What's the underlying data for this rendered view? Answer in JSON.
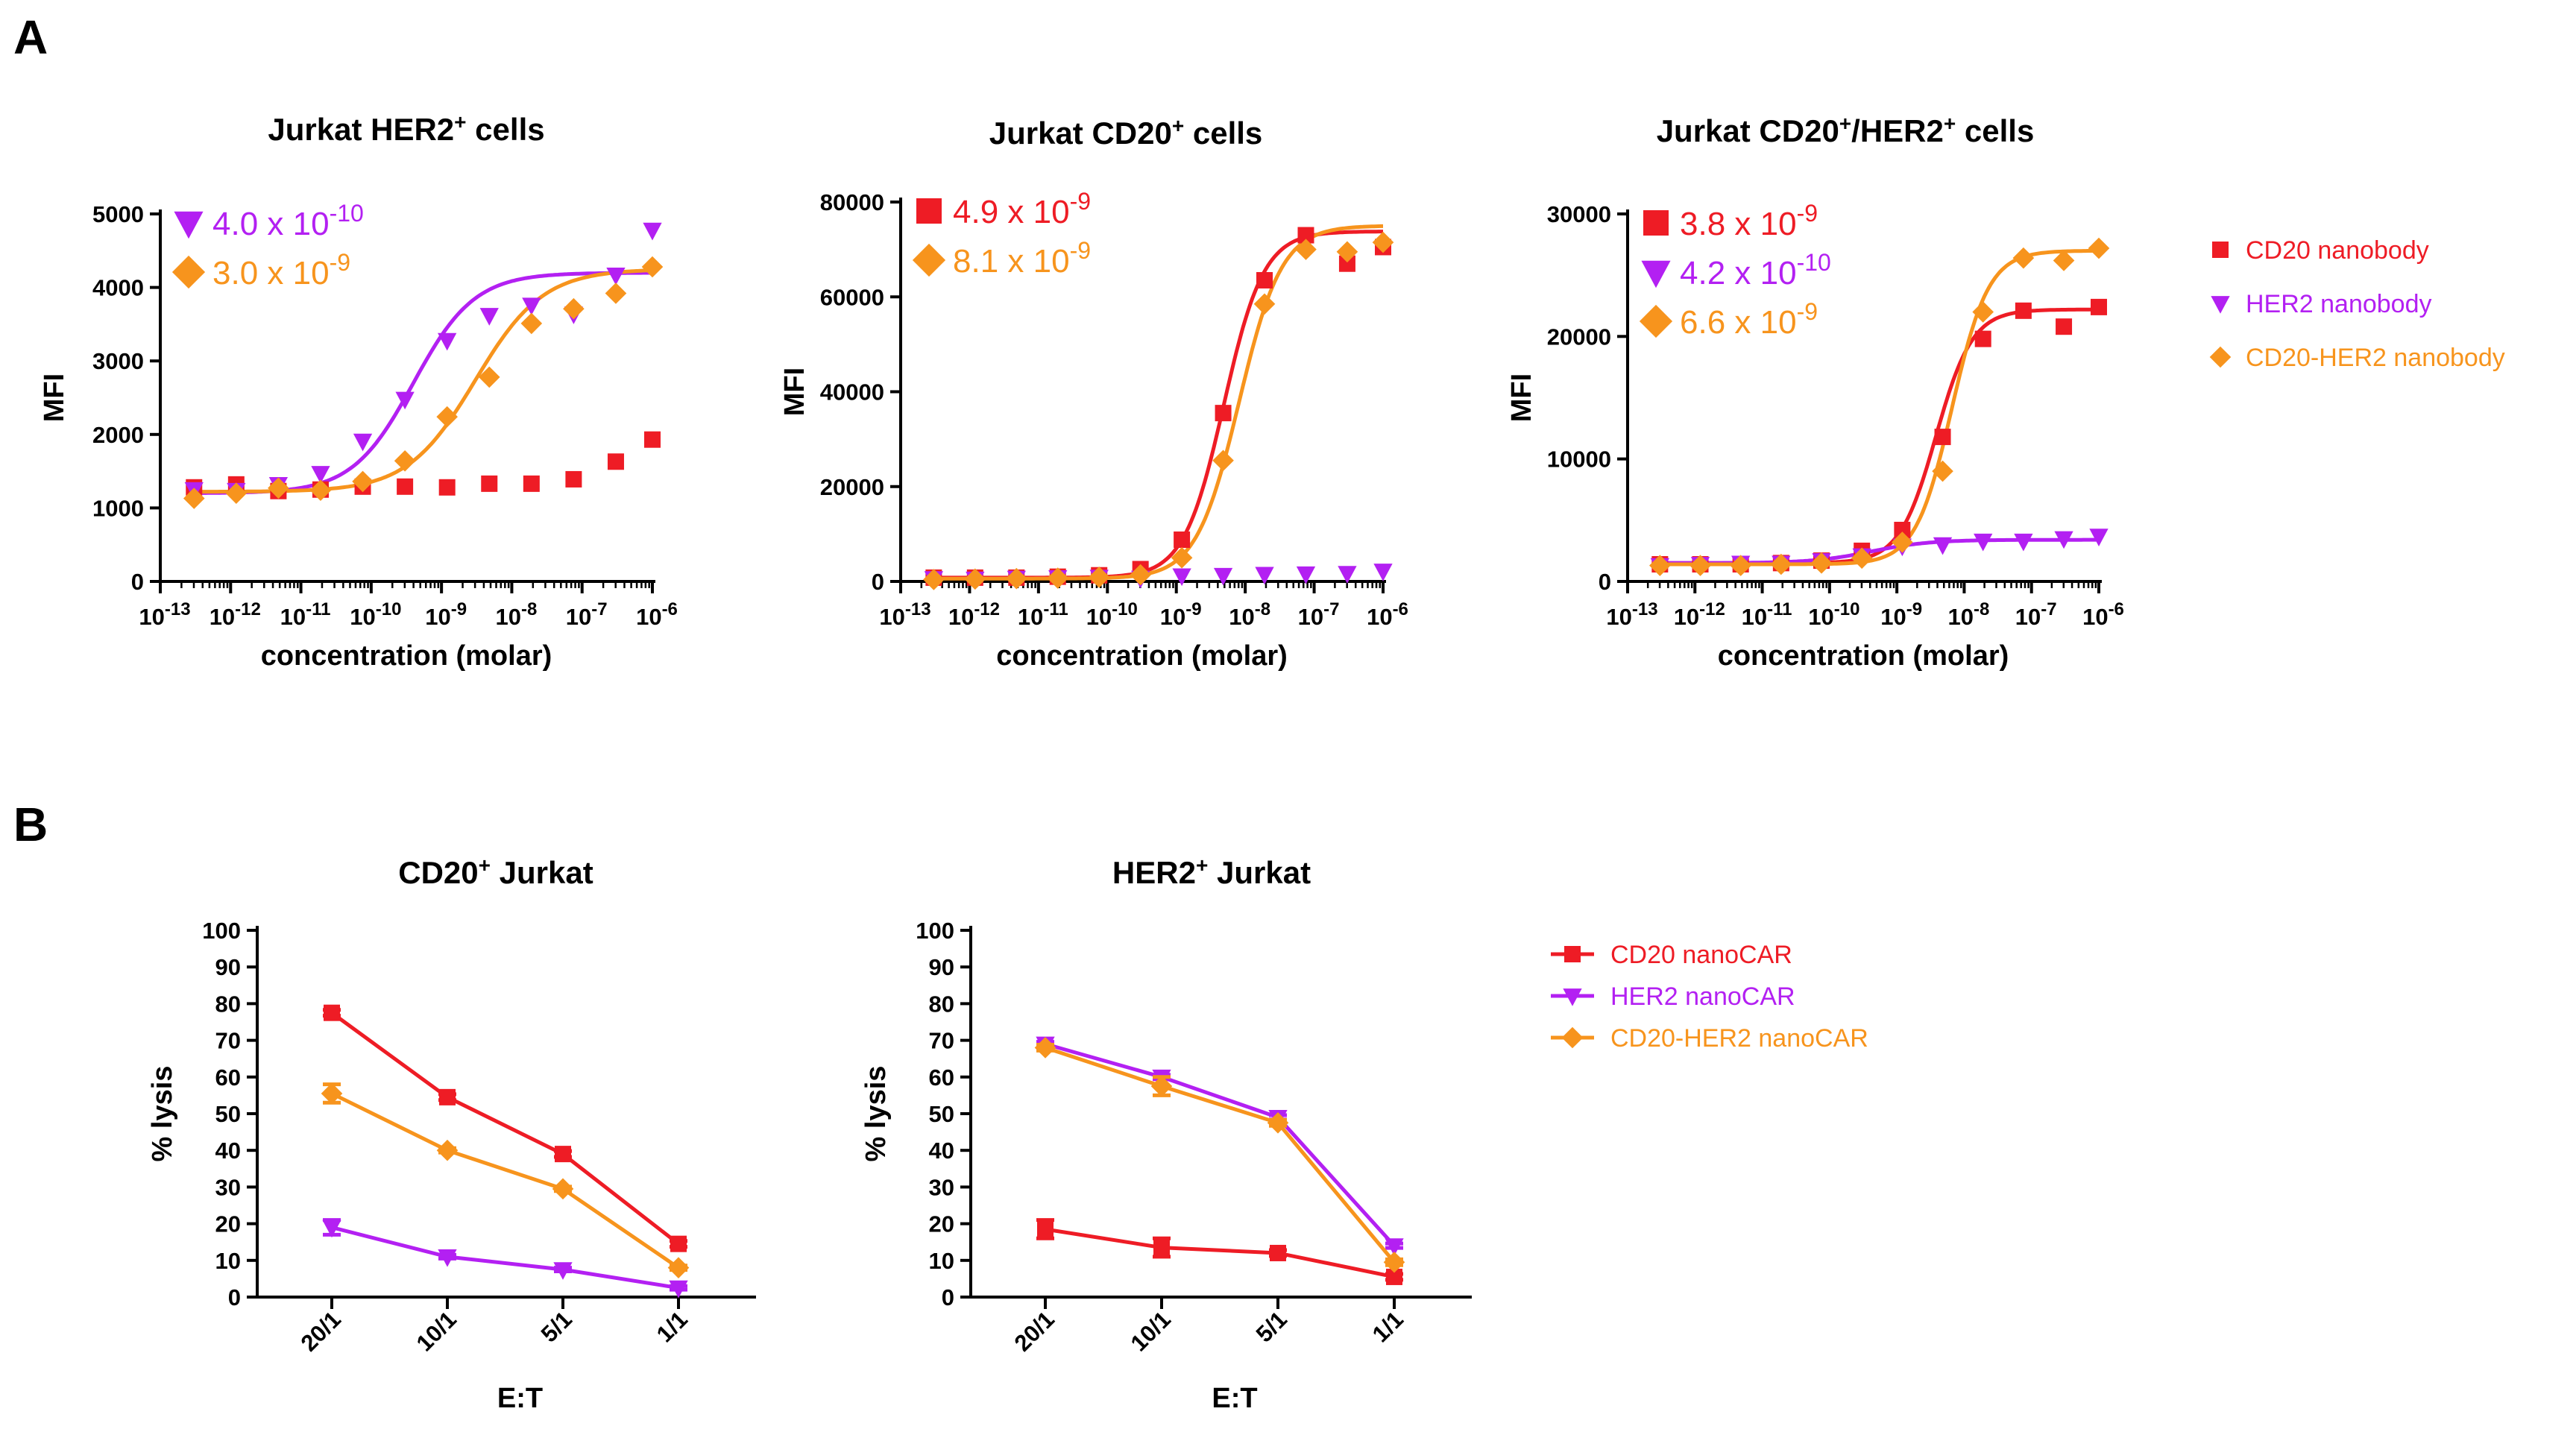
{
  "panel_labels": [
    "A",
    "B"
  ],
  "colors": {
    "cd20": "#ee1c25",
    "her2": "#b320f2",
    "cd20her2": "#f7941d",
    "axis": "#000000"
  },
  "legend_a": [
    {
      "label": "CD20 nanobody",
      "marker": "square",
      "color": "#ee1c25"
    },
    {
      "label": "HER2 nanobody",
      "marker": "triangle-down",
      "color": "#b320f2"
    },
    {
      "label": "CD20-HER2 nanobody",
      "marker": "diamond",
      "color": "#f7941d"
    }
  ],
  "legend_b": [
    {
      "label": "CD20 nanoCAR",
      "marker": "square",
      "color": "#ee1c25"
    },
    {
      "label": "HER2 nanoCAR",
      "marker": "triangle-down",
      "color": "#b320f2"
    },
    {
      "label": "CD20-HER2 nanoCAR",
      "marker": "diamond",
      "color": "#f7941d"
    }
  ],
  "chart_data": [
    {
      "id": "a1",
      "type": "scatter",
      "title": "Jurkat HER2",
      "title_sup": "+",
      "title_rest": " cells",
      "xlabel": "concentration (molar)",
      "ylabel": "MFI",
      "xscale": "log",
      "xlim": [
        -13,
        -6
      ],
      "ylim": [
        0,
        5000
      ],
      "xticks": [
        -13,
        -12,
        -11,
        -10,
        -9,
        -8,
        -7,
        -6
      ],
      "yticks": [
        0,
        1000,
        2000,
        3000,
        4000,
        5000
      ],
      "annotations": [
        {
          "marker": "triangle-down",
          "color": "#b320f2",
          "mant": "4.0 x 10",
          "exp": "-10"
        },
        {
          "marker": "diamond",
          "color": "#f7941d",
          "mant": "3.0 x 10",
          "exp": "-9"
        }
      ],
      "series": [
        {
          "name": "CD20 nanobody",
          "color": "#ee1c25",
          "marker": "square",
          "x": [
            -12.52,
            -11.92,
            -11.32,
            -10.72,
            -10.12,
            -9.52,
            -8.92,
            -8.32,
            -7.72,
            -7.12,
            -6.52,
            -5.92
          ],
          "y": [
            1280,
            1320,
            1230,
            1250,
            1290,
            1290,
            1280,
            1330,
            1330,
            1390,
            1630,
            1930
          ]
        },
        {
          "name": "HER2 nanobody",
          "color": "#b320f2",
          "marker": "triangle-down",
          "x": [
            -12.52,
            -11.92,
            -11.32,
            -10.72,
            -10.12,
            -9.52,
            -8.92,
            -8.32,
            -7.72,
            -7.12,
            -6.52,
            -5.92
          ],
          "y": [
            1250,
            1240,
            1320,
            1470,
            1910,
            2480,
            3280,
            3620,
            3760,
            3640,
            4170,
            4780
          ],
          "fit": {
            "bottom": 1200,
            "top": 4200,
            "logec50": -9.4,
            "hill": 1.0
          }
        },
        {
          "name": "CD20-HER2 nanobody",
          "color": "#f7941d",
          "marker": "diamond",
          "x": [
            -12.52,
            -11.92,
            -11.32,
            -10.72,
            -10.12,
            -9.52,
            -8.92,
            -8.32,
            -7.72,
            -7.12,
            -6.52,
            -5.92
          ],
          "y": [
            1130,
            1200,
            1270,
            1240,
            1360,
            1640,
            2240,
            2780,
            3510,
            3710,
            3920,
            4280
          ],
          "fit": {
            "bottom": 1220,
            "top": 4250,
            "logec50": -8.52,
            "hill": 0.9
          }
        }
      ]
    },
    {
      "id": "a2",
      "type": "scatter",
      "title": "Jurkat CD20",
      "title_sup": "+",
      "title_rest": " cells",
      "xlabel": "concentration (molar)",
      "ylabel": "MFI",
      "xscale": "log",
      "xlim": [
        -13,
        -6
      ],
      "ylim": [
        0,
        80000
      ],
      "xticks": [
        -13,
        -12,
        -11,
        -10,
        -9,
        -8,
        -7,
        -6
      ],
      "yticks": [
        0,
        20000,
        40000,
        60000,
        80000
      ],
      "annotations": [
        {
          "marker": "square",
          "color": "#ee1c25",
          "mant": "4.9 x 10",
          "exp": "-9"
        },
        {
          "marker": "diamond",
          "color": "#f7941d",
          "mant": "8.1 x 10",
          "exp": "-9"
        }
      ],
      "series": [
        {
          "name": "CD20 nanobody",
          "color": "#ee1c25",
          "marker": "square",
          "x": [
            -12.52,
            -11.92,
            -11.32,
            -10.72,
            -10.12,
            -9.52,
            -8.92,
            -8.32,
            -7.72,
            -7.12,
            -6.52,
            -5.92
          ],
          "y": [
            800,
            800,
            800,
            1000,
            1300,
            2600,
            8800,
            35500,
            63500,
            73000,
            67000,
            70500
          ],
          "fit": {
            "bottom": 800,
            "top": 73800,
            "logec50": -8.31,
            "hill": 1.5
          }
        },
        {
          "name": "HER2 nanobody",
          "color": "#b320f2",
          "marker": "triangle-down",
          "x": [
            -12.52,
            -11.92,
            -11.32,
            -10.72,
            -10.12,
            -9.52,
            -8.92,
            -8.32,
            -7.72,
            -7.12,
            -6.52,
            -5.92
          ],
          "y": [
            600,
            500,
            700,
            800,
            900,
            700,
            1200,
            1300,
            1500,
            1600,
            1700,
            2200
          ]
        },
        {
          "name": "CD20-HER2 nanobody",
          "color": "#f7941d",
          "marker": "diamond",
          "x": [
            -12.52,
            -11.92,
            -11.32,
            -10.72,
            -10.12,
            -9.52,
            -8.92,
            -8.32,
            -7.72,
            -7.12,
            -6.52,
            -5.92
          ],
          "y": [
            400,
            500,
            600,
            700,
            900,
            1400,
            5000,
            25500,
            58500,
            70000,
            69500,
            71500
          ],
          "fit": {
            "bottom": 600,
            "top": 75000,
            "logec50": -8.09,
            "hill": 1.4
          }
        }
      ]
    },
    {
      "id": "a3",
      "type": "scatter",
      "title": "Jurkat CD20",
      "title_sup": "+",
      "title_mid": "/HER2",
      "title_sup2": "+",
      "title_rest": " cells",
      "xlabel": "concentration (molar)",
      "ylabel": "MFI",
      "xscale": "log",
      "xlim": [
        -13,
        -6
      ],
      "ylim": [
        0,
        30000
      ],
      "xticks": [
        -13,
        -12,
        -11,
        -10,
        -9,
        -8,
        -7,
        -6
      ],
      "yticks": [
        0,
        10000,
        20000,
        30000
      ],
      "annotations": [
        {
          "marker": "square",
          "color": "#ee1c25",
          "mant": "3.8 x 10",
          "exp": "-9"
        },
        {
          "marker": "triangle-down",
          "color": "#b320f2",
          "mant": "4.2 x 10",
          "exp": "-10"
        },
        {
          "marker": "diamond",
          "color": "#f7941d",
          "mant": "6.6 x 10",
          "exp": "-9"
        }
      ],
      "series": [
        {
          "name": "CD20 nanobody",
          "color": "#ee1c25",
          "marker": "square",
          "x": [
            -12.52,
            -11.92,
            -11.32,
            -10.72,
            -10.12,
            -9.52,
            -8.92,
            -8.32,
            -7.72,
            -7.12,
            -6.52,
            -5.92
          ],
          "y": [
            1400,
            1400,
            1400,
            1500,
            1700,
            2500,
            4200,
            11800,
            19800,
            22100,
            20800,
            22400
          ],
          "fit": {
            "bottom": 1500,
            "top": 22200,
            "logec50": -8.42,
            "hill": 1.6
          }
        },
        {
          "name": "HER2 nanobody",
          "color": "#b320f2",
          "marker": "triangle-down",
          "x": [
            -12.52,
            -11.92,
            -11.32,
            -10.72,
            -10.12,
            -9.52,
            -8.92,
            -8.32,
            -7.72,
            -7.12,
            -6.52,
            -5.92
          ],
          "y": [
            1300,
            1400,
            1500,
            1500,
            1700,
            2100,
            2900,
            3000,
            3300,
            3300,
            3500,
            3700
          ],
          "fit": {
            "bottom": 1500,
            "top": 3400,
            "logec50": -9.38,
            "hill": 1.0
          }
        },
        {
          "name": "CD20-HER2 nanobody",
          "color": "#f7941d",
          "marker": "diamond",
          "x": [
            -12.52,
            -11.92,
            -11.32,
            -10.72,
            -10.12,
            -9.52,
            -8.92,
            -8.32,
            -7.72,
            -7.12,
            -6.52,
            -5.92
          ],
          "y": [
            1300,
            1300,
            1300,
            1400,
            1500,
            1900,
            3200,
            9000,
            22000,
            26400,
            26200,
            27200
          ],
          "fit": {
            "bottom": 1400,
            "top": 27000,
            "logec50": -8.18,
            "hill": 1.6
          }
        }
      ]
    },
    {
      "id": "b1",
      "type": "line",
      "title": "CD20",
      "title_sup": "+",
      "title_rest": " Jurkat",
      "xlabel": "E:T",
      "ylabel": "% lysis",
      "categories": [
        "20/1",
        "10/1",
        "5/1",
        "1/1"
      ],
      "ylim": [
        0,
        100
      ],
      "yticks": [
        0,
        10,
        20,
        30,
        40,
        50,
        60,
        70,
        80,
        90,
        100
      ],
      "series": [
        {
          "name": "CD20 nanoCAR",
          "color": "#ee1c25",
          "marker": "square",
          "values": [
            77.5,
            54.5,
            39,
            14.5
          ],
          "err": [
            0.8,
            0.8,
            0.8,
            0.8
          ]
        },
        {
          "name": "HER2 nanoCAR",
          "color": "#b320f2",
          "marker": "triangle-down",
          "values": [
            19,
            11,
            7.5,
            2.5
          ],
          "err": [
            2.0,
            0.5,
            0.5,
            0.5
          ]
        },
        {
          "name": "CD20-HER2 nanoCAR",
          "color": "#f7941d",
          "marker": "diamond",
          "values": [
            55.5,
            40,
            29.5,
            8
          ],
          "err": [
            2.5,
            0.6,
            0.6,
            0.6
          ]
        }
      ]
    },
    {
      "id": "b2",
      "type": "line",
      "title": "HER2",
      "title_sup": "+",
      "title_rest": " Jurkat",
      "xlabel": "E:T",
      "ylabel": "% lysis",
      "categories": [
        "20/1",
        "10/1",
        "5/1",
        "1/1"
      ],
      "ylim": [
        0,
        100
      ],
      "yticks": [
        0,
        10,
        20,
        30,
        40,
        50,
        60,
        70,
        80,
        90,
        100
      ],
      "series": [
        {
          "name": "CD20 nanoCAR",
          "color": "#ee1c25",
          "marker": "square",
          "values": [
            18.5,
            13.5,
            12,
            5.5
          ],
          "err": [
            2.5,
            2.5,
            0.8,
            0.8
          ]
        },
        {
          "name": "HER2 nanoCAR",
          "color": "#b320f2",
          "marker": "triangle-down",
          "values": [
            69,
            60,
            49,
            14
          ],
          "err": [
            0.6,
            0.6,
            0.6,
            0.6
          ]
        },
        {
          "name": "CD20-HER2 nanoCAR",
          "color": "#f7941d",
          "marker": "diamond",
          "values": [
            68,
            57.5,
            47.5,
            9.5
          ],
          "err": [
            0.8,
            2.5,
            0.8,
            0.8
          ]
        }
      ]
    }
  ]
}
